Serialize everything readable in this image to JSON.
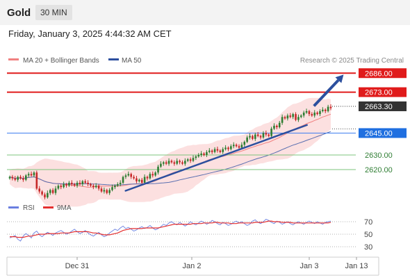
{
  "header": {
    "title": "Gold",
    "timeframe": "30 MIN"
  },
  "timestamp": "Friday, January 3, 2025 4:44:32 AM CET",
  "legend": {
    "ma20": "MA 20 + Bollinger Bands",
    "ma50": "MA 50"
  },
  "copyright": "Research © 2025 Trading Central",
  "rsi_legend": {
    "rsi": "RSI",
    "ma9": "9MA"
  },
  "colors": {
    "red_level": "#e01b1b",
    "blue_level": "#3d7df0",
    "green_level": "#7cc47c",
    "trend": "#2c4f9e",
    "band": "#fbd6d6",
    "ma20": "#f08080",
    "ma50": "#5a6fb0",
    "rsi": "#6a7fe0",
    "rsi_ma": "#e53030",
    "up": "#2e7d32",
    "down": "#c62828"
  },
  "chart_data": [
    {
      "type": "candlestick",
      "title": "Gold",
      "y_unit": "USD",
      "ylim": [
        2600.5,
        2688.5
      ],
      "x_ticks": [
        "Dec 31",
        "Jan 2",
        "Jan 3",
        "Jan 13"
      ],
      "levels": [
        {
          "value": 2686.0,
          "label": "2686.00",
          "style": "resistance"
        },
        {
          "value": 2673.0,
          "label": "2673.00",
          "style": "resistance"
        },
        {
          "value": 2663.3,
          "label": "2663.30",
          "style": "last"
        },
        {
          "value": 2645.0,
          "label": "2645.00",
          "style": "pivot"
        },
        {
          "value": 2630.0,
          "label": "2630.00",
          "style": "support"
        },
        {
          "value": 2620.0,
          "label": "2620.00",
          "style": "support"
        }
      ],
      "close": [
        2615,
        2614,
        2613,
        2615,
        2614,
        2613,
        2616,
        2617,
        2616,
        2618,
        2607,
        2605,
        2603,
        2601,
        2604,
        2606,
        2604,
        2607,
        2609,
        2608,
        2610,
        2609,
        2611,
        2610,
        2609,
        2611,
        2610,
        2612,
        2611,
        2610,
        2609,
        2608,
        2609,
        2607,
        2605,
        2606,
        2604,
        2606,
        2608,
        2609,
        2610,
        2611,
        2615,
        2616,
        2617,
        2615,
        2614,
        2612,
        2613,
        2611,
        2615,
        2614,
        2617,
        2616,
        2618,
        2622,
        2624,
        2625,
        2624,
        2626,
        2625,
        2624,
        2626,
        2625,
        2624,
        2626,
        2627,
        2626,
        2628,
        2629,
        2630,
        2631,
        2630,
        2632,
        2633,
        2632,
        2634,
        2633,
        2632,
        2634,
        2635,
        2634,
        2636,
        2637,
        2636,
        2635,
        2637,
        2639,
        2642,
        2643,
        2641,
        2644,
        2643,
        2642,
        2645,
        2644,
        2643,
        2648,
        2650,
        2649,
        2652,
        2656,
        2655,
        2657,
        2656,
        2658,
        2654,
        2656,
        2657,
        2659,
        2660,
        2658,
        2657,
        2659,
        2658,
        2660,
        2661,
        2660,
        2663,
        2662
      ],
      "trendline": [
        [
          0.34,
          2605.5
        ],
        [
          0.86,
          2650.5
        ]
      ],
      "projection_arrow": [
        [
          0.88,
          2663.5
        ],
        [
          0.965,
          2685.0
        ]
      ]
    },
    {
      "type": "line",
      "title": "RSI",
      "ylim": [
        20,
        80
      ],
      "y_ticks": [
        70,
        50,
        30
      ],
      "series": [
        {
          "name": "RSI",
          "values": [
            44,
            46,
            48,
            42,
            39,
            47,
            51,
            48,
            44,
            52,
            55,
            49,
            46,
            50,
            53,
            51,
            48,
            52,
            54,
            56,
            53,
            50,
            52,
            55,
            58,
            54,
            51,
            53,
            56,
            52,
            49,
            47,
            50,
            53,
            49,
            46,
            48,
            52,
            55,
            58,
            56,
            60,
            63,
            59,
            61,
            58,
            55,
            57,
            60,
            62,
            59,
            61,
            64,
            60,
            57,
            59,
            62,
            66,
            64,
            68,
            70,
            67,
            65,
            69,
            66,
            63,
            66,
            70,
            67,
            65,
            68,
            71,
            69,
            66,
            68,
            72,
            70,
            67,
            65,
            69,
            67,
            64,
            66,
            69,
            71,
            68,
            70,
            67,
            64,
            66,
            71,
            73,
            69,
            67,
            70,
            74,
            72,
            69,
            67,
            71,
            69,
            66,
            68,
            70,
            67,
            65,
            68,
            70,
            68,
            66,
            69,
            71,
            69,
            67,
            70,
            68,
            66,
            69,
            70,
            71
          ]
        },
        {
          "name": "9MA",
          "values": [
            46,
            46,
            46,
            45,
            45,
            45,
            46,
            47,
            47,
            48,
            49,
            50,
            50,
            50,
            51,
            51,
            51,
            51,
            51,
            52,
            52,
            52,
            52,
            53,
            54,
            54,
            54,
            54,
            54,
            54,
            53,
            52,
            52,
            51,
            50,
            49,
            49,
            49,
            50,
            51,
            52,
            54,
            56,
            57,
            58,
            59,
            59,
            59,
            59,
            59,
            60,
            60,
            60,
            60,
            60,
            60,
            61,
            62,
            63,
            64,
            65,
            66,
            66,
            66,
            66,
            66,
            66,
            66,
            67,
            67,
            67,
            67,
            68,
            68,
            68,
            68,
            69,
            69,
            68,
            68,
            68,
            68,
            67,
            67,
            67,
            68,
            68,
            68,
            68,
            68,
            68,
            69,
            69,
            69,
            69,
            70,
            71,
            71,
            70,
            70,
            70,
            69,
            69,
            69,
            69,
            68,
            68,
            68,
            68,
            68,
            68,
            68,
            68,
            68,
            68,
            68,
            68,
            68,
            68,
            69
          ]
        }
      ]
    }
  ]
}
